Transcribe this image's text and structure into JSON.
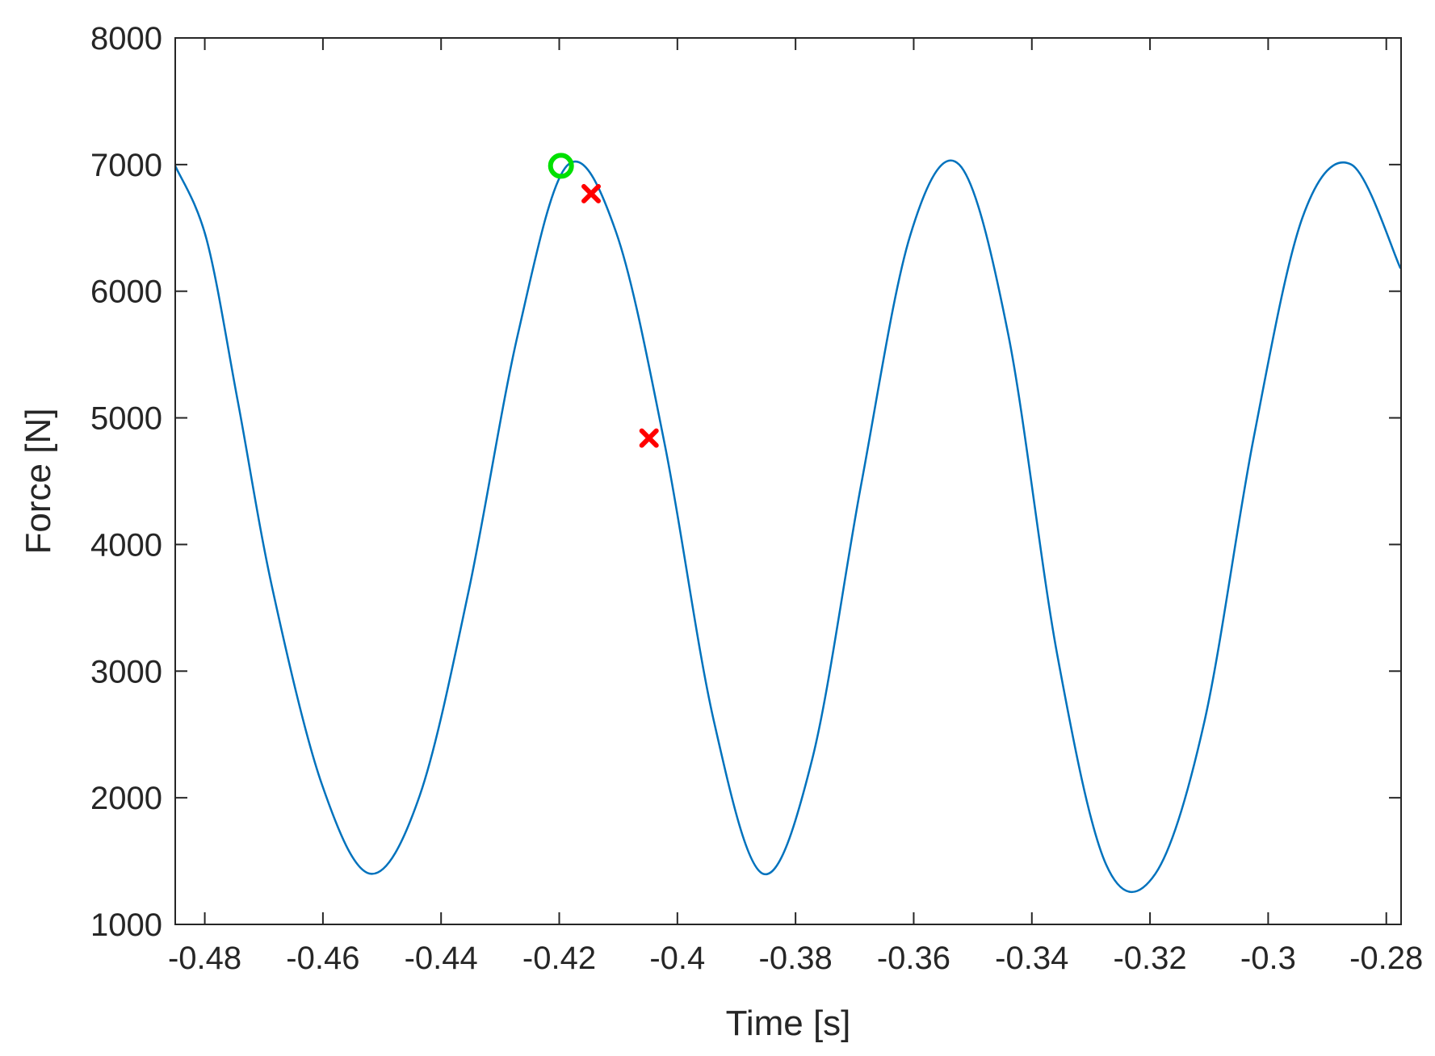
{
  "chart_data": {
    "type": "line",
    "title": "",
    "xlabel": "Time [s]",
    "ylabel": "Force [N]",
    "xlim": [
      -0.485,
      -0.2775
    ],
    "ylim": [
      1000,
      8000
    ],
    "x_ticks": [
      -0.48,
      -0.46,
      -0.44,
      -0.42,
      -0.4,
      -0.38,
      -0.36,
      -0.34,
      -0.32,
      -0.3,
      -0.28
    ],
    "x_tick_labels": [
      "-0.48",
      "-0.46",
      "-0.44",
      "-0.42",
      "-0.4",
      "-0.38",
      "-0.36",
      "-0.34",
      "-0.32",
      "-0.3",
      "-0.28"
    ],
    "y_ticks": [
      1000,
      2000,
      3000,
      4000,
      5000,
      6000,
      7000,
      8000
    ],
    "y_tick_labels": [
      "1000",
      "2000",
      "3000",
      "4000",
      "5000",
      "6000",
      "7000",
      "8000"
    ],
    "grid": false,
    "series": [
      {
        "color": "#0072BD",
        "style": "line",
        "x": [
          -0.485,
          -0.4797,
          -0.4744,
          -0.4685,
          -0.4602,
          -0.4519,
          -0.4436,
          -0.4353,
          -0.427,
          -0.4187,
          -0.4104,
          -0.4021,
          -0.3938,
          -0.3855,
          -0.3772,
          -0.3689,
          -0.3606,
          -0.3523,
          -0.344,
          -0.3357,
          -0.3274,
          -0.3191,
          -0.3108,
          -0.3025,
          -0.2942,
          -0.2859,
          -0.2776
        ],
        "y": [
          6990,
          6410,
          5130,
          3640,
          2110,
          1400,
          2020,
          3640,
          5660,
          6990,
          6470,
          4780,
          2600,
          1400,
          2300,
          4470,
          6440,
          7000,
          5660,
          3130,
          1470,
          1400,
          2600,
          4830,
          6580,
          7000,
          6180
        ]
      },
      {
        "color": "#00E000",
        "style": "marker-circle",
        "x": [
          -0.4197
        ],
        "y": [
          6990
        ]
      },
      {
        "color": "#FF0000",
        "style": "marker-x",
        "x": [
          -0.4146,
          -0.4048
        ],
        "y": [
          6770,
          4840
        ]
      }
    ]
  }
}
